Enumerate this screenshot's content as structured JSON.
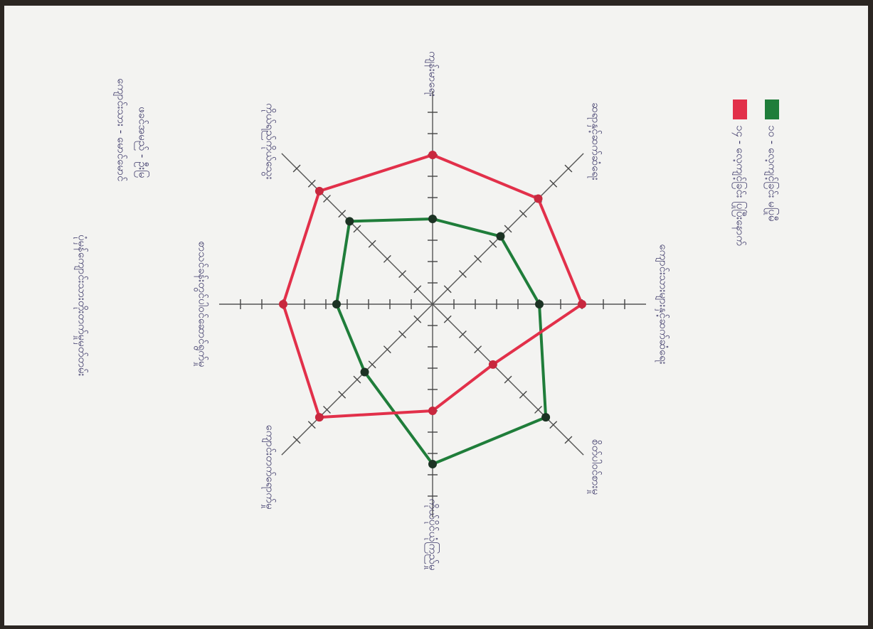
{
  "chart_data": {
    "type": "radar",
    "categories": [
      "ကျန်းမာရေး",
      "ဆရာနှင့်ဆက်ဆံရေး",
      "ကျောင်းသားများနှင့်ဆက်ဆံရေး",
      "စိတ်ပါဝင်စားမှု",
      "ကိုယ်ပိုင်ယုံကြည်မှု",
      "ကျောင်းတက်ရောက်မှု",
      "စာသင်ခန်းတွင်ပါဝင်ဆောင်ရွက်မှု",
      "ကိုယ်ရည်ကိုယ်သွေး"
    ],
    "series": [
      {
        "name": "၁၀ - လေ့ကျင့်ခြင်း မပြုမီ",
        "color": "#1f7d3a",
        "values": [
          4,
          4.5,
          5,
          7.5,
          7.5,
          4.5,
          4.5,
          5.5
        ]
      },
      {
        "name": "၁၄ - လေ့ကျင့်ခြင်း ပြုပြီးနောက်",
        "color": "#e2304a",
        "values": [
          7,
          7,
          7,
          4,
          5,
          7.5,
          7,
          7.5
        ]
      }
    ],
    "rlim": [
      0,
      10
    ],
    "rticks": [
      1,
      2,
      3,
      4,
      5,
      6,
      7,
      8,
      9
    ],
    "notes": [
      "ဖခင်အမည် - ဦးမြ",
      "ကျောင်းသား - မောင်မောင်",
      "ပုံမှန်ကျောင်းသားတိုးတက်မှုမှတ်တမ်း"
    ]
  }
}
